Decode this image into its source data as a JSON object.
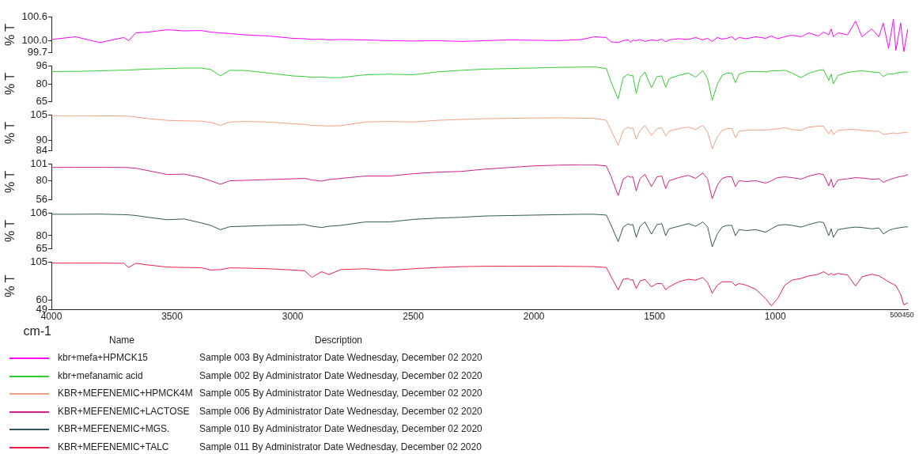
{
  "chart_data": [
    {
      "type": "line",
      "ylabel": "% T",
      "xlim": [
        4000,
        450
      ],
      "xticks": [
        4000,
        3500,
        3000,
        2500,
        2000,
        1500,
        1000,
        500,
        450
      ],
      "ylim": [
        99.7,
        100.6
      ],
      "yticks": [
        99.7,
        {
          "value": 100,
          "label": "100.0"
        },
        100.6
      ],
      "tick_labels": "y",
      "legend": "bottom",
      "x": [
        4000,
        3900,
        3800,
        3700,
        3680,
        3650,
        3600,
        3520,
        3450,
        3380,
        3340,
        3300,
        3260,
        3200,
        3100,
        3000,
        2950,
        2920,
        2880,
        2850,
        2800,
        2700,
        2600,
        2500,
        2400,
        2300,
        2200,
        2100,
        2000,
        1900,
        1800,
        1750,
        1700,
        1680,
        1651,
        1630,
        1610,
        1600,
        1590,
        1576,
        1560,
        1540,
        1513,
        1490,
        1470,
        1454,
        1440,
        1400,
        1360,
        1330,
        1300,
        1280,
        1261,
        1240,
        1220,
        1200,
        1180,
        1165,
        1150,
        1120,
        1080,
        1040,
        1016,
        990,
        960,
        930,
        893,
        860,
        820,
        800,
        778,
        768,
        759,
        740,
        700,
        667,
        640,
        600,
        570,
        552,
        530,
        510,
        500,
        480,
        467,
        450
      ],
      "series": [
        {
          "name": "kbr+mefa+HPMCK15",
          "color": "#ff00ff",
          "values": [
            100.03,
            100.1,
            99.95,
            100.08,
            100.0,
            100.2,
            100.22,
            100.28,
            100.25,
            100.26,
            100.22,
            100.2,
            100.18,
            100.15,
            100.12,
            100.06,
            100.05,
            100.03,
            100.04,
            100.02,
            100.03,
            100.02,
            100.0,
            99.99,
            100.0,
            99.98,
            100.0,
            100.02,
            100.01,
            100.0,
            100.03,
            100.1,
            100.08,
            99.97,
            99.95,
            100.0,
            100.02,
            99.96,
            100.01,
            100.0,
            100.03,
            99.98,
            100.02,
            100.0,
            100.04,
            99.97,
            100.02,
            100.05,
            100.03,
            100.08,
            100.02,
            100.06,
            99.98,
            100.08,
            100.04,
            100.06,
            100.1,
            100.02,
            100.08,
            100.05,
            100.1,
            100.06,
            100.12,
            100.05,
            100.1,
            100.14,
            100.1,
            100.2,
            100.12,
            100.22,
            100.15,
            100.3,
            100.1,
            100.2,
            100.15,
            100.5,
            100.1,
            100.3,
            100.1,
            100.45,
            99.8,
            100.55,
            99.75,
            100.45,
            99.72,
            100.3
          ]
        }
      ]
    },
    {
      "type": "line",
      "ylabel": "% T",
      "xlim": [
        4000,
        450
      ],
      "xticks": [
        4000,
        3500,
        3000,
        2500,
        2000,
        1500,
        1000,
        500,
        450
      ],
      "ylim": [
        65,
        96
      ],
      "yticks": [
        65,
        80,
        96
      ],
      "tick_labels": "y",
      "legend": "bottom",
      "x": [
        4000,
        3900,
        3800,
        3700,
        3680,
        3650,
        3600,
        3520,
        3450,
        3380,
        3340,
        3300,
        3260,
        3200,
        3100,
        3000,
        2950,
        2920,
        2880,
        2850,
        2800,
        2700,
        2600,
        2500,
        2400,
        2300,
        2200,
        2100,
        2000,
        1900,
        1800,
        1750,
        1700,
        1680,
        1651,
        1630,
        1610,
        1600,
        1590,
        1576,
        1560,
        1540,
        1513,
        1490,
        1470,
        1454,
        1440,
        1400,
        1360,
        1330,
        1300,
        1280,
        1261,
        1240,
        1220,
        1200,
        1180,
        1165,
        1150,
        1120,
        1080,
        1040,
        1016,
        990,
        960,
        930,
        893,
        860,
        820,
        800,
        778,
        768,
        759,
        740,
        700,
        667,
        640,
        600,
        570,
        552,
        530,
        510,
        500,
        480,
        467,
        450
      ],
      "series": [
        {
          "name": "kbr+mefanamic acid",
          "color": "#33cc33",
          "values": [
            91.4,
            91.5,
            92,
            92.6,
            92.7,
            93,
            93.5,
            94,
            94.4,
            94.5,
            93.2,
            87.5,
            92.5,
            92.3,
            90,
            87.5,
            87,
            86.2,
            86.5,
            86,
            86,
            88.5,
            89,
            88.5,
            91,
            92.5,
            93.5,
            94,
            94.5,
            95,
            95.3,
            95.4,
            94,
            82,
            67,
            86,
            89,
            87.5,
            88,
            72,
            86,
            91,
            77,
            87,
            87.5,
            77.5,
            85,
            88,
            90,
            86.5,
            92,
            85,
            66,
            80,
            88,
            90,
            90,
            81.5,
            89,
            91,
            91.5,
            91,
            92,
            92,
            92.5,
            90,
            86,
            90,
            92.5,
            93,
            83.5,
            89,
            80.5,
            88,
            90.5,
            91.5,
            92,
            91,
            90.5,
            87,
            89.5,
            89,
            90,
            90.5,
            91,
            91
          ]
        }
      ]
    },
    {
      "type": "line",
      "ylabel": "% T",
      "xlim": [
        4000,
        450
      ],
      "xticks": [
        4000,
        3500,
        3000,
        2500,
        2000,
        1500,
        1000,
        500,
        450
      ],
      "ylim": [
        84,
        105
      ],
      "yticks": [
        84,
        90,
        105
      ],
      "tick_labels": "y",
      "legend": "bottom",
      "x": [
        4000,
        3900,
        3800,
        3700,
        3680,
        3650,
        3600,
        3520,
        3450,
        3380,
        3340,
        3300,
        3260,
        3200,
        3100,
        3000,
        2950,
        2920,
        2880,
        2850,
        2800,
        2700,
        2600,
        2500,
        2400,
        2300,
        2200,
        2100,
        2000,
        1900,
        1800,
        1750,
        1700,
        1680,
        1651,
        1630,
        1610,
        1600,
        1590,
        1576,
        1560,
        1540,
        1513,
        1490,
        1470,
        1454,
        1440,
        1400,
        1360,
        1330,
        1300,
        1280,
        1261,
        1240,
        1220,
        1200,
        1180,
        1165,
        1150,
        1120,
        1080,
        1040,
        1016,
        990,
        960,
        930,
        893,
        860,
        820,
        800,
        778,
        768,
        759,
        740,
        700,
        667,
        640,
        600,
        570,
        552,
        530,
        510,
        500,
        480,
        467,
        450
      ],
      "series": [
        {
          "name": "KBR+MEFENEMIC+HPMCK4M",
          "color": "#f0a080",
          "values": [
            104.8,
            104.8,
            104.7,
            104.6,
            104.5,
            104,
            103,
            102,
            101.7,
            101.5,
            100.8,
            99,
            101,
            101.3,
            101,
            100,
            99.5,
            99,
            98.8,
            98.6,
            98.8,
            101,
            101.3,
            101,
            102,
            102.5,
            103,
            103.2,
            103.4,
            103.5,
            103.3,
            103.2,
            102,
            96,
            87,
            96,
            98,
            97,
            97.5,
            90.7,
            96,
            99,
            93,
            97,
            97.5,
            92.6,
            95.5,
            97,
            98,
            96.5,
            99,
            95,
            85,
            92,
            96,
            97,
            97.2,
            91.7,
            95.5,
            96,
            96.3,
            96.2,
            96.5,
            97,
            97.5,
            96.5,
            96,
            98,
            98.5,
            98.5,
            94,
            96.5,
            93.5,
            96,
            96.5,
            96.5,
            96,
            95.5,
            95.5,
            93.5,
            94,
            94.5,
            94,
            94.5,
            94.6,
            94.7
          ]
        }
      ]
    },
    {
      "type": "line",
      "ylabel": "% T",
      "xlim": [
        4000,
        450
      ],
      "xticks": [
        4000,
        3500,
        3000,
        2500,
        2000,
        1500,
        1000,
        500,
        450
      ],
      "ylim": [
        56,
        101
      ],
      "yticks": [
        56,
        80,
        101
      ],
      "tick_labels": "y",
      "legend": "bottom",
      "x": [
        4000,
        3900,
        3800,
        3700,
        3680,
        3650,
        3600,
        3520,
        3450,
        3380,
        3340,
        3300,
        3260,
        3200,
        3100,
        3000,
        2950,
        2920,
        2880,
        2850,
        2800,
        2700,
        2600,
        2500,
        2400,
        2300,
        2200,
        2100,
        2000,
        1900,
        1800,
        1750,
        1700,
        1680,
        1651,
        1630,
        1610,
        1600,
        1590,
        1576,
        1560,
        1540,
        1513,
        1490,
        1470,
        1454,
        1440,
        1400,
        1360,
        1330,
        1300,
        1280,
        1261,
        1240,
        1220,
        1200,
        1180,
        1165,
        1150,
        1120,
        1080,
        1040,
        1016,
        990,
        960,
        930,
        893,
        860,
        820,
        800,
        778,
        768,
        759,
        740,
        700,
        667,
        640,
        600,
        570,
        552,
        530,
        510,
        500,
        480,
        467,
        450
      ],
      "series": [
        {
          "name": "KBR+MEFENEMIC+LACTOSE",
          "color": "#d0208a",
          "values": [
            97,
            97.2,
            97.2,
            97,
            96.8,
            96,
            93,
            88,
            88.5,
            84,
            80,
            75.6,
            80,
            80.5,
            81.5,
            82.5,
            83,
            81,
            79.5,
            81.5,
            83,
            86,
            86,
            89,
            91,
            92,
            95,
            97,
            99,
            100,
            100.5,
            100.5,
            99,
            85,
            61,
            82,
            86,
            84.5,
            85,
            67,
            83,
            88,
            72.6,
            85,
            86,
            70,
            80,
            84,
            87,
            83,
            90,
            82,
            57,
            74,
            83,
            85,
            85,
            72.6,
            80,
            79,
            80,
            77,
            80,
            84,
            85,
            84,
            82,
            86,
            89,
            88,
            73.6,
            82,
            71.6,
            81,
            82.5,
            84,
            83.5,
            82,
            82.5,
            78,
            81,
            83,
            84,
            85.5,
            86,
            88
          ]
        }
      ]
    },
    {
      "type": "line",
      "ylabel": "% T",
      "xlim": [
        4000,
        450
      ],
      "xticks": [
        4000,
        3500,
        3000,
        2500,
        2000,
        1500,
        1000,
        500,
        450
      ],
      "ylim": [
        65,
        106
      ],
      "yticks": [
        65,
        80,
        106
      ],
      "tick_labels": "y",
      "legend": "bottom",
      "x": [
        4000,
        3900,
        3800,
        3700,
        3680,
        3650,
        3600,
        3520,
        3450,
        3380,
        3340,
        3300,
        3260,
        3200,
        3100,
        3000,
        2950,
        2920,
        2880,
        2850,
        2800,
        2700,
        2600,
        2500,
        2400,
        2300,
        2200,
        2100,
        2000,
        1900,
        1800,
        1750,
        1700,
        1680,
        1651,
        1630,
        1610,
        1600,
        1590,
        1576,
        1560,
        1540,
        1513,
        1490,
        1470,
        1454,
        1440,
        1400,
        1360,
        1330,
        1300,
        1280,
        1261,
        1240,
        1220,
        1200,
        1180,
        1165,
        1150,
        1120,
        1080,
        1040,
        1016,
        990,
        960,
        930,
        893,
        860,
        820,
        800,
        778,
        768,
        759,
        740,
        700,
        667,
        640,
        600,
        570,
        552,
        530,
        510,
        500,
        480,
        467,
        450
      ],
      "series": [
        {
          "name": "KBR+MEFENEMIC+MGS.",
          "color": "#335555",
          "values": [
            105,
            105,
            105.2,
            104.5,
            104.3,
            103.5,
            101.5,
            98.6,
            99.5,
            95,
            92,
            87,
            90.5,
            91,
            92,
            92.5,
            93,
            91,
            89.5,
            91,
            92,
            96,
            96,
            99,
            100.5,
            101.5,
            103,
            103.5,
            104,
            104.5,
            105,
            105,
            104,
            92,
            73,
            90,
            94,
            92.5,
            93,
            78,
            91,
            96,
            81.8,
            93,
            94,
            80,
            88,
            91,
            94,
            91,
            96,
            90,
            67,
            82,
            90,
            92,
            92,
            80,
            87,
            86,
            87,
            84,
            88,
            92,
            93,
            92,
            90,
            93,
            96,
            95.5,
            80,
            88,
            78,
            87,
            89,
            90,
            89.5,
            88,
            89,
            82,
            86,
            88,
            88.5,
            89.5,
            90,
            90.4
          ]
        }
      ]
    },
    {
      "type": "line",
      "ylabel": "% T",
      "xlabel": "cm-1",
      "xlim": [
        4000,
        450
      ],
      "xticks": [
        4000,
        3500,
        3000,
        2500,
        2000,
        1500,
        1000,
        500,
        450
      ],
      "ylim": [
        49,
        105
      ],
      "yticks": [
        49,
        60,
        105
      ],
      "legend": "bottom",
      "legend_title": "Name",
      "annotations": [
        "Description",
        "Sample 003 By Administrator Date Wednesday, December 02 2020",
        "Sample 002 By Administrator Date Wednesday, December 02 2020",
        "Sample 005 By Administrator Date Wednesday, December 02 2020",
        "Sample 006 By Administrator Date Wednesday, December 02 2020",
        "Sample 010 By Administrator Date Wednesday, December 02 2020",
        "Sample 011 By Administrator Date Wednesday, December 02 2020"
      ],
      "x": [
        4000,
        3900,
        3800,
        3700,
        3680,
        3650,
        3600,
        3520,
        3450,
        3380,
        3340,
        3300,
        3260,
        3200,
        3100,
        3000,
        2950,
        2920,
        2880,
        2850,
        2800,
        2700,
        2600,
        2500,
        2400,
        2300,
        2200,
        2100,
        2000,
        1900,
        1800,
        1750,
        1700,
        1680,
        1651,
        1630,
        1610,
        1600,
        1590,
        1576,
        1560,
        1540,
        1513,
        1490,
        1470,
        1454,
        1440,
        1400,
        1360,
        1330,
        1300,
        1280,
        1261,
        1240,
        1220,
        1200,
        1180,
        1165,
        1150,
        1120,
        1080,
        1040,
        1016,
        990,
        960,
        930,
        893,
        860,
        820,
        800,
        778,
        768,
        759,
        740,
        700,
        667,
        640,
        600,
        570,
        552,
        530,
        510,
        500,
        480,
        467,
        450
      ],
      "series": [
        {
          "name": "KBR+MEFENEMIC+TALC",
          "color": "#e8204a",
          "values": [
            104.2,
            104.2,
            104.2,
            104,
            99,
            104,
            102,
            99.5,
            99,
            98.8,
            96,
            96.5,
            98.5,
            98.3,
            97.5,
            96,
            95,
            87.3,
            94,
            90.6,
            96.5,
            97.5,
            95.5,
            97.5,
            99,
            100,
            100.5,
            100.5,
            100.5,
            100.5,
            100.2,
            100,
            99,
            88,
            72.5,
            85,
            86,
            84,
            84.5,
            74,
            83,
            85,
            76,
            80,
            80,
            72.5,
            76,
            82,
            85,
            84,
            87,
            81,
            68.5,
            78,
            82,
            82,
            82,
            77.5,
            80,
            78,
            73,
            62,
            53.5,
            62,
            78,
            84,
            86,
            89,
            91,
            94,
            90,
            92,
            90,
            92,
            90,
            77,
            88,
            91,
            89,
            86,
            82,
            79,
            77.5,
            67,
            54.5,
            57
          ]
        }
      ]
    }
  ]
}
